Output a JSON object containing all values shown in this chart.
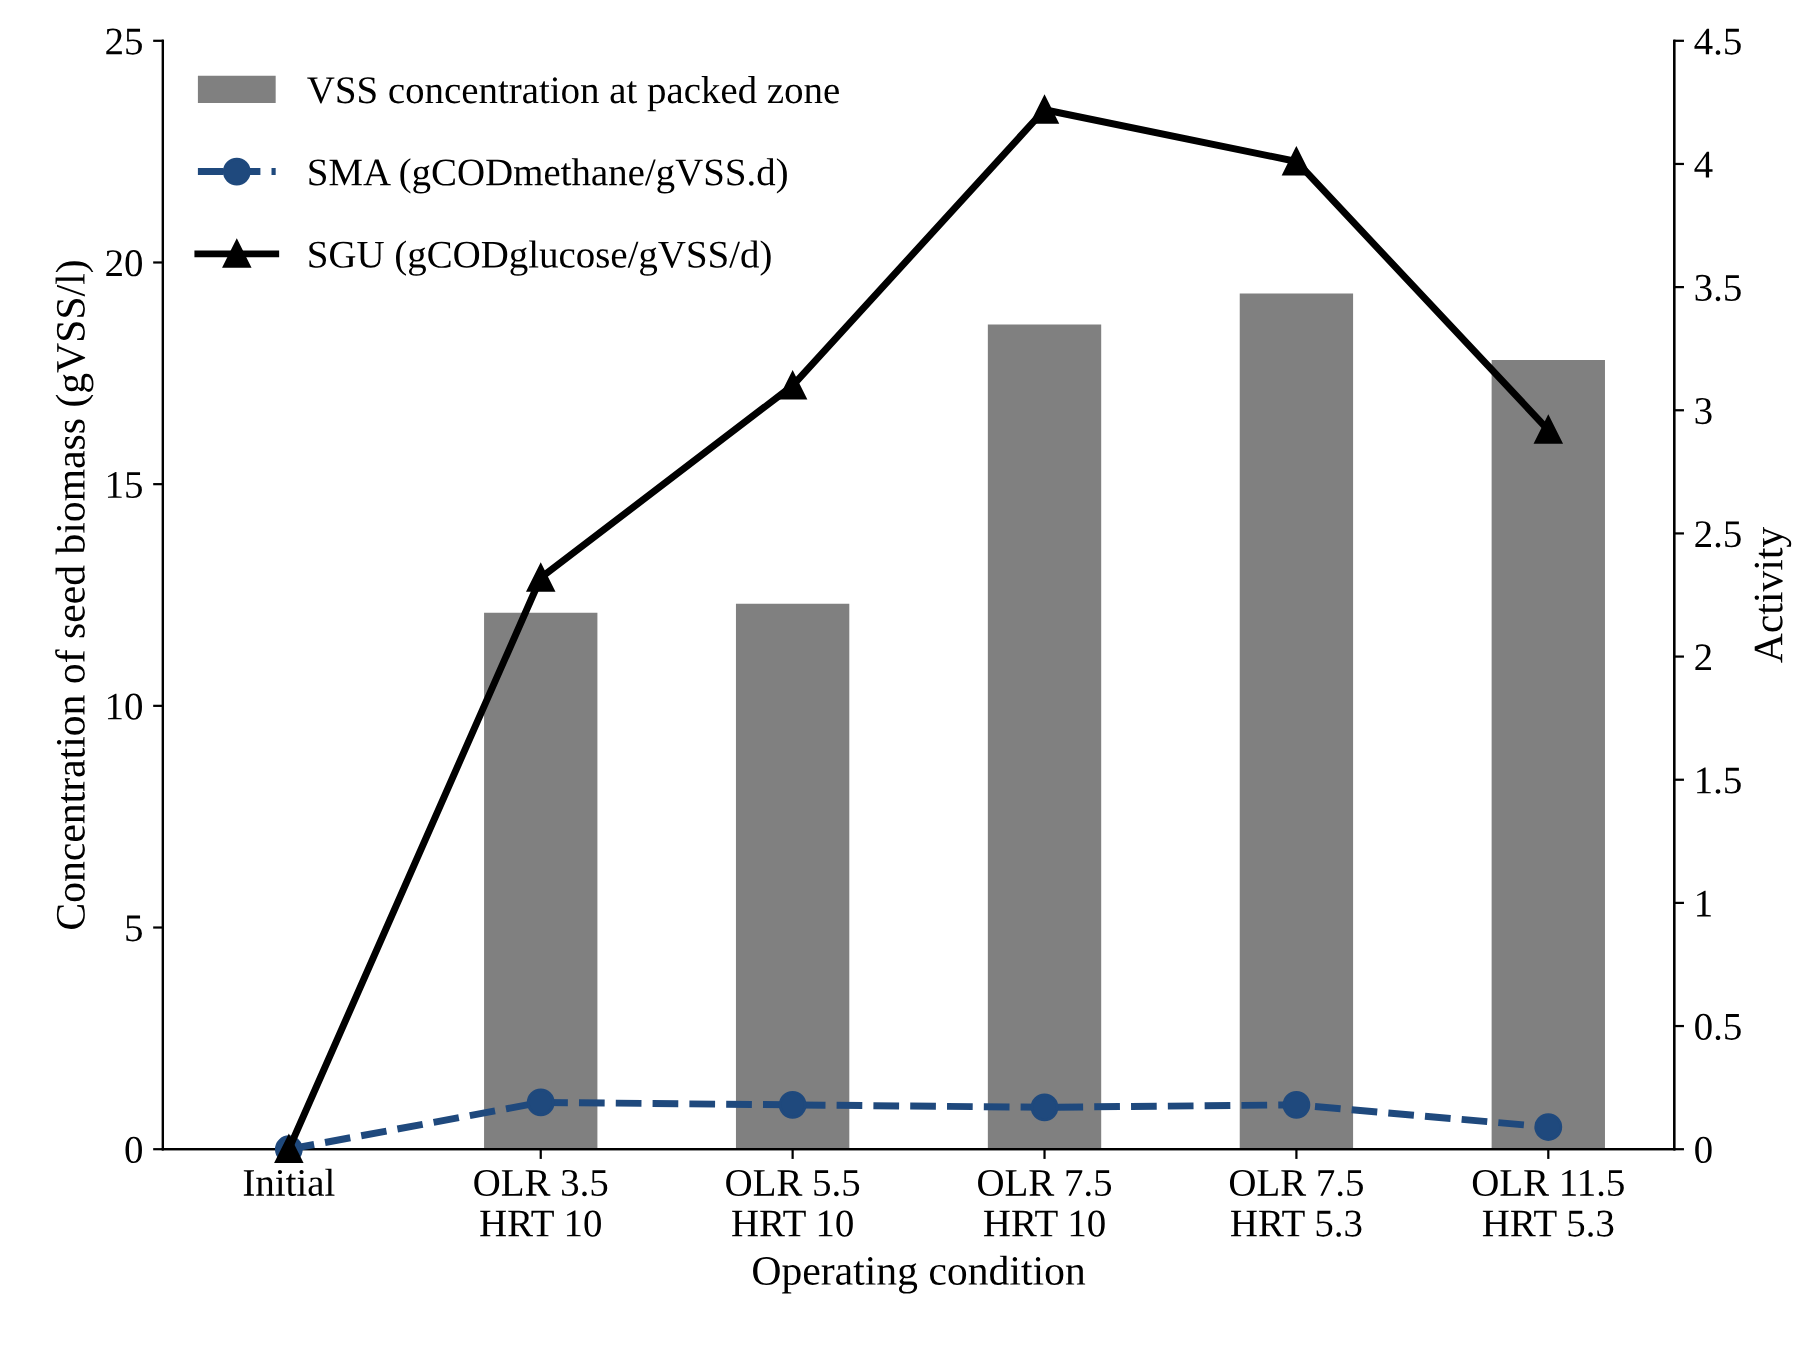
{
  "chart_data": {
    "type": "bar",
    "xlabel": "Operating condition",
    "ylabel": "Concentration of seed biomass (gVSS/l)",
    "y2label": "Activity",
    "categories": [
      "Initial",
      "OLR 3.5\nHRT 10",
      "OLR 5.5\nHRT 10",
      "OLR 7.5\nHRT 10",
      "OLR 7.5\nHRT 5.3",
      "OLR 11.5\nHRT 5.3"
    ],
    "series": [
      {
        "name": "VSS concentration at packed zone",
        "color": "#808080",
        "values": [
          0,
          12.1,
          12.3,
          18.6,
          19.3,
          17.8
        ]
      },
      {
        "name": "SMA (gCODmethane/gVSS.d)",
        "type": "line",
        "axis": "y2",
        "color": "#1f497d",
        "marker": "circle",
        "line_style": "dashed",
        "values": [
          0,
          0.19,
          0.18,
          0.17,
          0.18,
          0.09
        ]
      },
      {
        "name": "SGU (gCODglucose/gVSS/d)",
        "type": "line",
        "axis": "y2",
        "color": "#000000",
        "marker": "triangle",
        "line_style": "solid",
        "values": [
          0,
          2.32,
          3.1,
          4.22,
          4.01,
          2.92
        ]
      }
    ],
    "ylim": [
      0,
      25
    ],
    "yticks": [
      0,
      5,
      10,
      15,
      20,
      25
    ],
    "y2lim": [
      0,
      4.5
    ],
    "y2ticks": [
      0,
      0.5,
      1,
      1.5,
      2,
      2.5,
      3,
      3.5,
      4,
      4.5
    ],
    "grid": false,
    "legend": "top left"
  }
}
